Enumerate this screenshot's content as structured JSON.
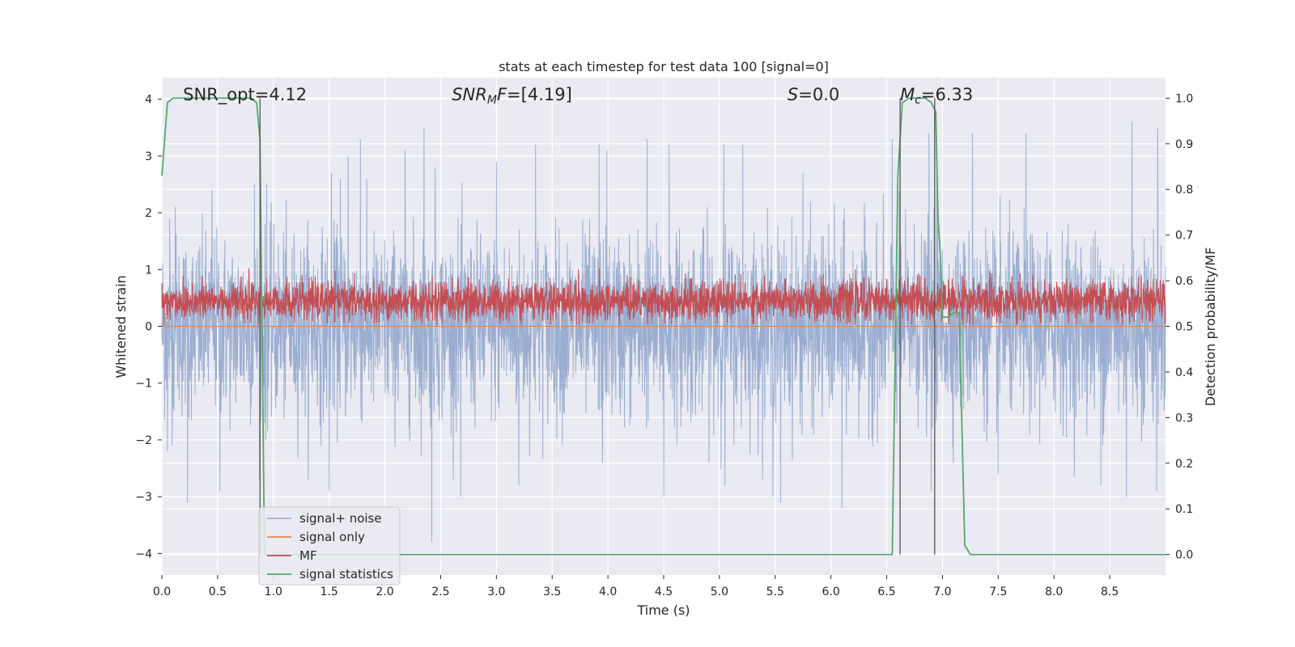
{
  "chart_data": {
    "type": "line",
    "title": "stats at each timestep for test data 100 [signal=0]",
    "xlabel": "Time (s)",
    "ylabel": "Whitened strain",
    "y2label": "Detection probability/MF",
    "xlim": [
      0.0,
      9.0
    ],
    "ylim": [
      -4.38,
      4.38
    ],
    "y2lim": [
      -0.045,
      1.045
    ],
    "xticks": [
      0.0,
      0.5,
      1.0,
      1.5,
      2.0,
      2.5,
      3.0,
      3.5,
      4.0,
      4.5,
      5.0,
      5.5,
      6.0,
      6.5,
      7.0,
      7.5,
      8.0,
      8.5
    ],
    "xtick_labels": [
      "0.0",
      "0.5",
      "1.0",
      "1.5",
      "2.0",
      "2.5",
      "3.0",
      "3.5",
      "4.0",
      "4.5",
      "5.0",
      "5.5",
      "6.0",
      "6.5",
      "7.0",
      "7.5",
      "8.0",
      "8.5"
    ],
    "yticks": [
      -4,
      -3,
      -2,
      -1,
      0,
      1,
      2,
      3,
      4
    ],
    "ytick_labels": [
      "−4",
      "−3",
      "−2",
      "−1",
      "0",
      "1",
      "2",
      "3",
      "4"
    ],
    "y2ticks": [
      0.0,
      0.1,
      0.2,
      0.3,
      0.4,
      0.5,
      0.6,
      0.7,
      0.8,
      0.9,
      1.0
    ],
    "y2tick_labels": [
      "0.0",
      "0.1",
      "0.2",
      "0.3",
      "0.4",
      "0.5",
      "0.6",
      "0.7",
      "0.8",
      "0.9",
      "1.0"
    ],
    "grid": true,
    "legend_position": "lower-left",
    "annotations": [
      {
        "prefix": "SNR_opt",
        "subscript": "",
        "suffix": "",
        "value": "=4.12",
        "italic": false,
        "x": 0.19
      },
      {
        "prefix": "SNR",
        "subscript": "M",
        "suffix": "F",
        "value": "=[4.19]",
        "italic": true,
        "x": 2.6
      },
      {
        "prefix": "S",
        "subscript": "",
        "suffix": "",
        "value": "=0.0",
        "italic": true,
        "x": 5.61
      },
      {
        "prefix": "M",
        "subscript": "c",
        "suffix": "",
        "value": "=6.33",
        "italic": true,
        "x": 6.62
      }
    ],
    "vertical_lines": [
      0.88,
      6.62,
      6.93
    ],
    "series": [
      {
        "name": "signal+ noise",
        "color": "#4c72b0",
        "alpha": 0.5,
        "kind": "noise",
        "axis": "left",
        "amplitude_sd": 0.8,
        "samples": 3600,
        "peaks": [
          [
            0.07,
            1.9
          ],
          [
            0.12,
            2.1
          ],
          [
            0.45,
            2.4
          ],
          [
            0.83,
            2.5
          ],
          [
            0.94,
            2.5
          ],
          [
            1.52,
            2.7
          ],
          [
            1.6,
            2.6
          ],
          [
            1.67,
            3.0
          ],
          [
            1.78,
            3.3
          ],
          [
            2.18,
            3.1
          ],
          [
            2.35,
            3.5
          ],
          [
            2.45,
            2.8
          ],
          [
            3.0,
            2.9
          ],
          [
            3.35,
            3.2
          ],
          [
            3.92,
            3.2
          ],
          [
            3.99,
            3.1
          ],
          [
            4.35,
            3.3
          ],
          [
            4.55,
            3.2
          ],
          [
            5.04,
            3.2
          ],
          [
            5.21,
            3.2
          ],
          [
            5.75,
            2.7
          ],
          [
            6.55,
            3.3
          ],
          [
            6.88,
            3.4
          ],
          [
            6.95,
            3.2
          ],
          [
            7.27,
            3.4
          ],
          [
            7.75,
            3.4
          ],
          [
            8.7,
            3.6
          ],
          [
            8.93,
            3.5
          ]
        ],
        "troughs": [
          [
            0.05,
            -2.2
          ],
          [
            0.23,
            -3.1
          ],
          [
            0.52,
            -2.9
          ],
          [
            0.93,
            -2.0
          ],
          [
            1.5,
            -2.9
          ],
          [
            2.42,
            -3.8
          ],
          [
            2.68,
            -3.0
          ],
          [
            3.2,
            -2.8
          ],
          [
            3.95,
            -2.4
          ],
          [
            4.5,
            -3.0
          ],
          [
            5.05,
            -2.8
          ],
          [
            5.48,
            -3.0
          ],
          [
            5.55,
            -3.1
          ],
          [
            6.1,
            -3.2
          ],
          [
            6.9,
            -2.9
          ],
          [
            7.5,
            -2.6
          ],
          [
            8.42,
            -2.8
          ],
          [
            8.65,
            -3.0
          ],
          [
            8.92,
            -2.9
          ]
        ]
      },
      {
        "name": "signal only",
        "color": "#dd8452",
        "kind": "flat",
        "axis": "left",
        "value": 0
      },
      {
        "name": "MF",
        "color": "#c44e52",
        "kind": "mf",
        "axis": "right",
        "baseline": 0.5,
        "mean_offset": 0.055,
        "max": 0.627,
        "samples": 3600
      },
      {
        "name": "signal statistics",
        "color": "#55a868",
        "kind": "line",
        "axis": "right",
        "x": [
          0.0,
          0.05,
          0.1,
          0.2,
          0.3,
          0.5,
          0.8,
          0.85,
          0.88,
          0.92,
          1.0,
          6.0,
          6.55,
          6.6,
          6.64,
          6.7,
          6.75,
          6.85,
          6.9,
          6.94,
          6.96,
          6.98,
          7.0,
          7.05,
          7.1,
          7.15,
          7.2,
          7.25,
          9.0
        ],
        "y": [
          0.83,
          0.99,
          1.0,
          1.0,
          1.0,
          1.0,
          1.0,
          0.99,
          0.91,
          0.0,
          0.0,
          0.0,
          0.0,
          0.83,
          0.99,
          1.0,
          1.0,
          1.0,
          0.99,
          0.97,
          0.74,
          0.66,
          0.52,
          0.52,
          0.53,
          0.53,
          0.02,
          0.0,
          0.0
        ]
      }
    ]
  }
}
